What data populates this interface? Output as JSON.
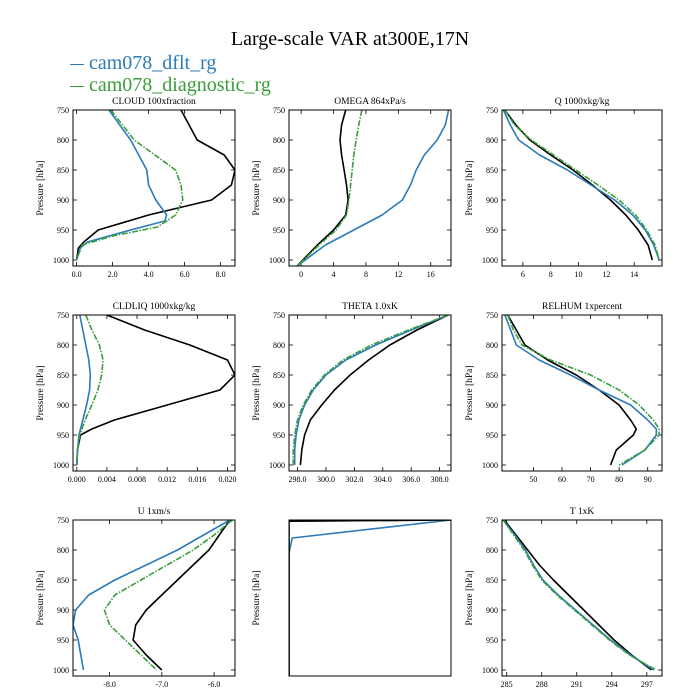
{
  "title": "Large-scale VAR at300E,17N",
  "legend": [
    {
      "label": "cam078_dflt_rg",
      "color": "#2b7bba"
    },
    {
      "label": "cam078_diagnostic_rg",
      "color": "#3a9d3a"
    }
  ],
  "colors": {
    "black": "#000000",
    "dflt": "#2b7bba",
    "diag": "#3a9d3a"
  },
  "chart_data": [
    {
      "type": "line",
      "title": "CLOUD  100xfraction",
      "ylabel": "Pressure [hPa]",
      "xlim": [
        -0.2,
        8.8
      ],
      "ylim": [
        750,
        1010
      ],
      "xticks": [
        0,
        2,
        4,
        6,
        8
      ],
      "xtick_labels": [
        "0.0",
        "2.0",
        "4.0",
        "6.0",
        "8.0"
      ],
      "yticks": [
        750,
        800,
        850,
        900,
        950,
        1000
      ],
      "series": [
        {
          "key": "black",
          "y": [
            750,
            800,
            825,
            850,
            875,
            900,
            925,
            950,
            970,
            980,
            1000
          ],
          "x": [
            5.8,
            6.7,
            8.2,
            8.8,
            8.6,
            7.5,
            4.0,
            1.2,
            0.4,
            0.1,
            0.0
          ]
        },
        {
          "key": "dflt",
          "y": [
            750,
            800,
            850,
            875,
            900,
            925,
            935,
            950,
            970,
            980,
            1000
          ],
          "x": [
            1.8,
            3.0,
            3.9,
            4.0,
            4.4,
            5.0,
            4.9,
            3.0,
            0.6,
            0.2,
            0.0
          ]
        },
        {
          "key": "diag",
          "y": [
            750,
            800,
            850,
            875,
            900,
            925,
            945,
            960,
            975,
            1000
          ],
          "x": [
            1.9,
            3.2,
            5.5,
            5.8,
            5.9,
            5.5,
            4.5,
            2.0,
            0.3,
            0.0
          ]
        }
      ]
    },
    {
      "type": "line",
      "title": "OMEGA  864xPa/s",
      "ylabel": "Pressure [hPa]",
      "xlim": [
        -1.5,
        18.5
      ],
      "ylim": [
        750,
        1010
      ],
      "xticks": [
        0,
        4,
        8,
        12,
        16
      ],
      "xtick_labels": [
        "0",
        "4",
        "8",
        "12",
        "16"
      ],
      "yticks": [
        750,
        800,
        850,
        900,
        950,
        1000
      ],
      "series": [
        {
          "key": "black",
          "y": [
            750,
            775,
            800,
            825,
            850,
            875,
            900,
            925,
            950,
            975,
            1000,
            1010
          ],
          "x": [
            5.5,
            5.0,
            4.8,
            5.0,
            5.3,
            5.6,
            5.8,
            5.5,
            4.0,
            2.0,
            0.2,
            -0.5
          ]
        },
        {
          "key": "dflt",
          "y": [
            750,
            775,
            800,
            825,
            850,
            875,
            900,
            925,
            950,
            975,
            1000,
            1010
          ],
          "x": [
            18.2,
            17.8,
            16.8,
            15.2,
            14.2,
            13.5,
            12.5,
            10.0,
            6.5,
            3.0,
            0.5,
            -0.5
          ]
        },
        {
          "key": "diag",
          "y": [
            750,
            775,
            800,
            825,
            850,
            875,
            900,
            925,
            950,
            975,
            1000,
            1010
          ],
          "x": [
            7.5,
            7.1,
            6.8,
            6.5,
            6.3,
            6.1,
            5.9,
            5.6,
            4.3,
            2.2,
            0.3,
            -0.5
          ]
        }
      ]
    },
    {
      "type": "line",
      "title": "Q  1000xkg/kg",
      "ylabel": "Pressure [hPa]",
      "xlim": [
        4.5,
        16.0
      ],
      "ylim": [
        750,
        1010
      ],
      "xticks": [
        6,
        8,
        10,
        12,
        14
      ],
      "xtick_labels": [
        "6",
        "8",
        "10",
        "12",
        "14"
      ],
      "yticks": [
        750,
        800,
        850,
        900,
        950,
        1000
      ],
      "series": [
        {
          "key": "black",
          "y": [
            750,
            775,
            800,
            825,
            850,
            875,
            900,
            925,
            950,
            975,
            1000
          ],
          "x": [
            4.7,
            5.5,
            6.5,
            8.0,
            9.6,
            11.0,
            12.3,
            13.4,
            14.3,
            15.0,
            15.3
          ]
        },
        {
          "key": "dflt",
          "y": [
            750,
            775,
            800,
            825,
            850,
            875,
            900,
            925,
            950,
            975,
            1000
          ],
          "x": [
            4.6,
            5.1,
            5.7,
            7.2,
            9.2,
            10.9,
            12.6,
            13.9,
            14.8,
            15.4,
            15.8
          ]
        },
        {
          "key": "diag",
          "y": [
            750,
            775,
            800,
            825,
            850,
            875,
            900,
            925,
            950,
            975,
            1000
          ],
          "x": [
            4.7,
            5.4,
            6.6,
            8.2,
            9.8,
            11.4,
            12.9,
            14.1,
            14.9,
            15.5,
            15.8
          ]
        }
      ]
    },
    {
      "type": "line",
      "title": "CLDLIQ  1000xkg/kg",
      "ylabel": "Pressure [hPa]",
      "xlim": [
        -0.0005,
        0.021
      ],
      "ylim": [
        750,
        1010
      ],
      "xticks": [
        0,
        0.004,
        0.008,
        0.012,
        0.016,
        0.02
      ],
      "xtick_labels": [
        "0.000",
        "0.004",
        "0.008",
        "0.012",
        "0.016",
        "0.020"
      ],
      "yticks": [
        750,
        800,
        850,
        900,
        950,
        1000
      ],
      "series": [
        {
          "key": "black",
          "y": [
            750,
            775,
            800,
            825,
            850,
            875,
            900,
            925,
            940,
            950,
            975,
            1000
          ],
          "x": [
            0.004,
            0.009,
            0.015,
            0.02,
            0.021,
            0.019,
            0.012,
            0.005,
            0.002,
            0.0005,
            0.0001,
            0.0
          ]
        },
        {
          "key": "dflt",
          "y": [
            750,
            775,
            800,
            825,
            850,
            875,
            900,
            925,
            950,
            975,
            1000
          ],
          "x": [
            0.0004,
            0.0008,
            0.0012,
            0.0016,
            0.0018,
            0.0017,
            0.0013,
            0.0008,
            0.0003,
            0.0001,
            0.0
          ]
        },
        {
          "key": "diag",
          "y": [
            750,
            775,
            800,
            825,
            850,
            875,
            900,
            925,
            950,
            975,
            1000
          ],
          "x": [
            0.0012,
            0.002,
            0.003,
            0.0035,
            0.0033,
            0.0028,
            0.002,
            0.0011,
            0.0004,
            0.0001,
            0.0
          ]
        }
      ]
    },
    {
      "type": "line",
      "title": "THETA  1.0xK",
      "ylabel": "Pressure [hPa]",
      "xlim": [
        297.4,
        308.8
      ],
      "ylim": [
        750,
        1010
      ],
      "xticks": [
        298,
        300,
        302,
        304,
        306,
        308
      ],
      "xtick_labels": [
        "298.0",
        "300.0",
        "302.0",
        "304.0",
        "306.0",
        "308.0"
      ],
      "yticks": [
        750,
        800,
        850,
        900,
        950,
        1000
      ],
      "series": [
        {
          "key": "black",
          "y": [
            750,
            775,
            800,
            825,
            850,
            875,
            900,
            925,
            950,
            975,
            1000
          ],
          "x": [
            308.6,
            306.4,
            304.5,
            303.0,
            301.7,
            300.6,
            299.7,
            298.9,
            298.5,
            298.3,
            298.2
          ]
        },
        {
          "key": "dflt",
          "y": [
            750,
            775,
            800,
            825,
            850,
            875,
            900,
            925,
            950,
            975,
            1000
          ],
          "x": [
            308.6,
            306.0,
            303.5,
            301.4,
            300.0,
            299.1,
            298.5,
            298.1,
            297.9,
            297.8,
            297.8
          ]
        },
        {
          "key": "diag",
          "y": [
            750,
            775,
            800,
            825,
            850,
            875,
            900,
            925,
            950,
            975,
            1000
          ],
          "x": [
            308.6,
            305.8,
            303.2,
            301.2,
            299.9,
            299.0,
            298.4,
            298.0,
            297.8,
            297.7,
            297.7
          ]
        }
      ]
    },
    {
      "type": "line",
      "title": "RELHUM  1xpercent",
      "ylabel": "Pressure [hPa]",
      "xlim": [
        39,
        95
      ],
      "ylim": [
        750,
        1010
      ],
      "xticks": [
        50,
        60,
        70,
        80,
        90
      ],
      "xtick_labels": [
        "50",
        "60",
        "70",
        "80",
        "90"
      ],
      "yticks": [
        750,
        800,
        850,
        900,
        950,
        1000
      ],
      "series": [
        {
          "key": "black",
          "y": [
            750,
            775,
            800,
            825,
            850,
            875,
            900,
            925,
            940,
            950,
            975,
            1000
          ],
          "x": [
            41,
            44,
            47,
            55,
            65,
            73,
            80,
            84,
            86,
            85,
            79,
            77
          ]
        },
        {
          "key": "dflt",
          "y": [
            750,
            775,
            800,
            825,
            850,
            875,
            900,
            925,
            940,
            950,
            975,
            1000
          ],
          "x": [
            40,
            42,
            44,
            52,
            63,
            73,
            84,
            90,
            93,
            93,
            89,
            81
          ]
        },
        {
          "key": "diag",
          "y": [
            750,
            775,
            800,
            825,
            850,
            875,
            900,
            925,
            940,
            950,
            975,
            1000
          ],
          "x": [
            41,
            43,
            46,
            56,
            70,
            80,
            87,
            92,
            94,
            94,
            89,
            80
          ]
        }
      ]
    },
    {
      "type": "line",
      "title": "U  1xm/s",
      "ylabel": "Pressure [hPa]",
      "xlim": [
        -8.7,
        -5.6
      ],
      "ylim": [
        750,
        1010
      ],
      "xticks": [
        -8,
        -7,
        -6
      ],
      "xtick_labels": [
        "-8.0",
        "-7.0",
        "-6.0"
      ],
      "yticks": [
        750,
        800,
        850,
        900,
        950,
        1000
      ],
      "series": [
        {
          "key": "black",
          "y": [
            750,
            775,
            800,
            825,
            850,
            875,
            900,
            925,
            950,
            975,
            1000
          ],
          "x": [
            -5.7,
            -5.9,
            -6.1,
            -6.4,
            -6.7,
            -7.0,
            -7.3,
            -7.5,
            -7.55,
            -7.3,
            -7.0
          ]
        },
        {
          "key": "dflt",
          "y": [
            750,
            775,
            800,
            825,
            850,
            875,
            900,
            925,
            950,
            975,
            1000
          ],
          "x": [
            -5.7,
            -6.2,
            -6.7,
            -7.3,
            -7.9,
            -8.4,
            -8.65,
            -8.7,
            -8.6,
            -8.55,
            -8.5
          ]
        },
        {
          "key": "diag",
          "y": [
            750,
            775,
            800,
            825,
            850,
            875,
            900,
            925,
            950,
            975,
            1000
          ],
          "x": [
            -5.65,
            -6.0,
            -6.4,
            -6.9,
            -7.4,
            -7.9,
            -8.1,
            -8.0,
            -7.7,
            -7.4,
            -7.1
          ]
        }
      ]
    },
    {
      "type": "line",
      "title": "",
      "ylabel": "Pressure [hPa]",
      "xlim": [
        0,
        1
      ],
      "ylim": [
        750,
        1010
      ],
      "xticks": [],
      "xtick_labels": [],
      "yticks": [],
      "series": [
        {
          "key": "dflt",
          "y": [
            750,
            780,
            805,
            1010
          ],
          "x": [
            1.0,
            0.02,
            0.0,
            0.0
          ]
        },
        {
          "key": "diag",
          "y": [
            750,
            752,
            1010
          ],
          "x": [
            1.0,
            0.0,
            0.0
          ]
        },
        {
          "key": "black",
          "y": [
            750,
            752,
            1010
          ],
          "x": [
            1.0,
            0.0,
            0.0
          ]
        }
      ]
    },
    {
      "type": "line",
      "title": "T  1xK",
      "ylabel": "Pressure [hPa]",
      "xlim": [
        284.6,
        298.3
      ],
      "ylim": [
        750,
        1010
      ],
      "xticks": [
        285,
        288,
        291,
        294,
        297
      ],
      "xtick_labels": [
        "285",
        "288",
        "291",
        "294",
        "297"
      ],
      "yticks": [
        750,
        800,
        850,
        900,
        950,
        1000
      ],
      "series": [
        {
          "key": "black",
          "y": [
            750,
            775,
            800,
            825,
            850,
            875,
            900,
            925,
            950,
            975,
            1000
          ],
          "x": [
            284.8,
            285.8,
            286.8,
            287.8,
            289.0,
            290.3,
            291.6,
            292.9,
            294.2,
            295.7,
            297.4
          ]
        },
        {
          "key": "dflt",
          "y": [
            750,
            775,
            800,
            825,
            850,
            875,
            900,
            925,
            950,
            975,
            1000
          ],
          "x": [
            284.7,
            285.7,
            286.6,
            287.3,
            288.1,
            289.4,
            290.9,
            292.4,
            293.9,
            295.6,
            297.6
          ]
        },
        {
          "key": "diag",
          "y": [
            750,
            775,
            800,
            825,
            850,
            875,
            900,
            925,
            950,
            975,
            1000
          ],
          "x": [
            284.7,
            285.6,
            286.5,
            287.2,
            288.0,
            289.3,
            290.8,
            292.3,
            293.8,
            295.5,
            297.8
          ]
        }
      ]
    }
  ]
}
